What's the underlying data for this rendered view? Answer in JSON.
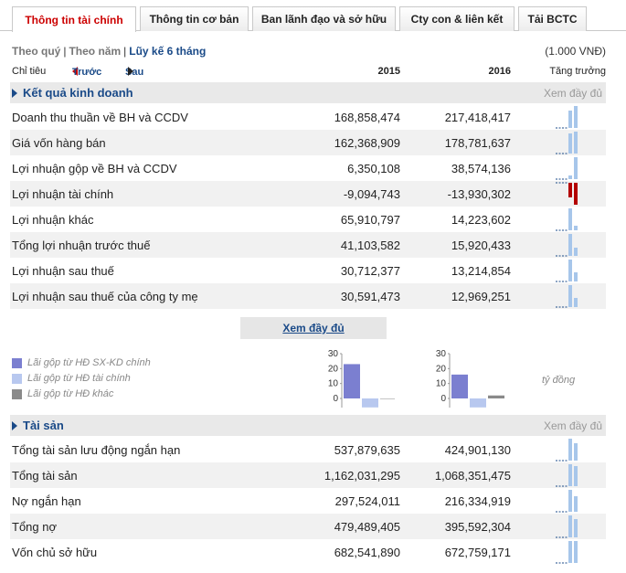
{
  "tabs": [
    {
      "label": "Thông tin tài chính",
      "active": true
    },
    {
      "label": "Thông tin cơ bản",
      "active": false
    },
    {
      "label": "Ban lãnh đạo và sở hữu",
      "active": false
    },
    {
      "label": "Cty con & liên kết",
      "active": false
    },
    {
      "label": "Tải BCTC",
      "active": false
    }
  ],
  "period": {
    "quarterly": "Theo quý",
    "yearly": "Theo năm",
    "cumulative": "Lũy kế 6 tháng"
  },
  "unit_label": "(1.000 VNĐ)",
  "header": {
    "indicator": "Chỉ tiêu",
    "prev": "Trước",
    "next": "Sau",
    "year1": "2015",
    "year2": "2016",
    "growth": "Tăng trưởng"
  },
  "business": {
    "title": "Kết quả kinh doanh",
    "more": "Xem đầy đủ",
    "rows": [
      {
        "label": "Doanh thu thuần về BH và CCDV",
        "v2015": "168,858,474",
        "v2016": "217,418,417",
        "n2015": 168858474,
        "n2016": 217418417
      },
      {
        "label": "Giá vốn hàng bán",
        "v2015": "162,368,909",
        "v2016": "178,781,637",
        "n2015": 162368909,
        "n2016": 178781637
      },
      {
        "label": "Lợi nhuận gộp về BH và CCDV",
        "v2015": "6,350,108",
        "v2016": "38,574,136",
        "n2015": 6350108,
        "n2016": 38574136
      },
      {
        "label": "Lợi nhuận tài chính",
        "v2015": "-9,094,743",
        "v2016": "-13,930,302",
        "n2015": -9094743,
        "n2016": -13930302
      },
      {
        "label": "Lợi nhuận khác",
        "v2015": "65,910,797",
        "v2016": "14,223,602",
        "n2015": 65910797,
        "n2016": 14223602
      },
      {
        "label": "Tổng lợi nhuận trước thuế",
        "v2015": "41,103,582",
        "v2016": "15,920,433",
        "n2015": 41103582,
        "n2016": 15920433
      },
      {
        "label": "Lợi nhuận sau thuế",
        "v2015": "30,712,377",
        "v2016": "13,214,854",
        "n2015": 30712377,
        "n2016": 13214854
      },
      {
        "label": "Lợi nhuận sau thuế của công ty mẹ",
        "v2015": "30,591,473",
        "v2016": "12,969,251",
        "n2015": 30591473,
        "n2016": 12969251
      }
    ]
  },
  "show_more_button": "Xem đầy đủ",
  "legend": [
    {
      "label": "Lãi gộp từ HĐ SX-KD chính",
      "color": "#7b7fd0"
    },
    {
      "label": "Lãi gộp từ HĐ tài chính",
      "color": "#b8c8ef"
    },
    {
      "label": "Lãi gộp từ HĐ khác",
      "color": "#8a8a8a"
    }
  ],
  "mini_chart_unit": "tỷ đồng",
  "chart_data": [
    {
      "type": "bar",
      "categories": [
        "Lãi gộp từ HĐ SX-KD chính",
        "Lãi gộp từ HĐ tài chính",
        "Lãi gộp từ HĐ khác"
      ],
      "values": [
        23,
        -6,
        0
      ],
      "yticks": [
        "30",
        "20",
        "10",
        "0"
      ],
      "ylim": [
        -7,
        30
      ]
    },
    {
      "type": "bar",
      "categories": [
        "Lãi gộp từ HĐ SX-KD chính",
        "Lãi gộp từ HĐ tài chính",
        "Lãi gộp từ HĐ khác"
      ],
      "values": [
        16,
        -6,
        2
      ],
      "yticks": [
        "30",
        "20",
        "10",
        "0"
      ],
      "ylim": [
        -7,
        30
      ]
    }
  ],
  "assets": {
    "title": "Tài sản",
    "more": "Xem đầy đủ",
    "rows": [
      {
        "label": "Tổng tài sản lưu động ngắn hạn",
        "v2015": "537,879,635",
        "v2016": "424,901,130",
        "n2015": 537879635,
        "n2016": 424901130
      },
      {
        "label": "Tổng tài sản",
        "v2015": "1,162,031,295",
        "v2016": "1,068,351,475",
        "n2015": 1162031295,
        "n2016": 1068351475
      },
      {
        "label": "Nợ ngắn hạn",
        "v2015": "297,524,011",
        "v2016": "216,334,919",
        "n2015": 297524011,
        "n2016": 216334919
      },
      {
        "label": "Tổng nợ",
        "v2015": "479,489,405",
        "v2016": "395,592,304",
        "n2015": 479489405,
        "n2016": 395592304
      },
      {
        "label": "Vốn chủ sở hữu",
        "v2015": "682,541,890",
        "v2016": "672,759,171",
        "n2015": 682541890,
        "n2016": 672759171
      }
    ]
  },
  "colors": {
    "accent": "#1a4a88",
    "active_tab": "#cc0000",
    "spark_pos": "#a7c6ea",
    "spark_neg": "#b30000"
  }
}
